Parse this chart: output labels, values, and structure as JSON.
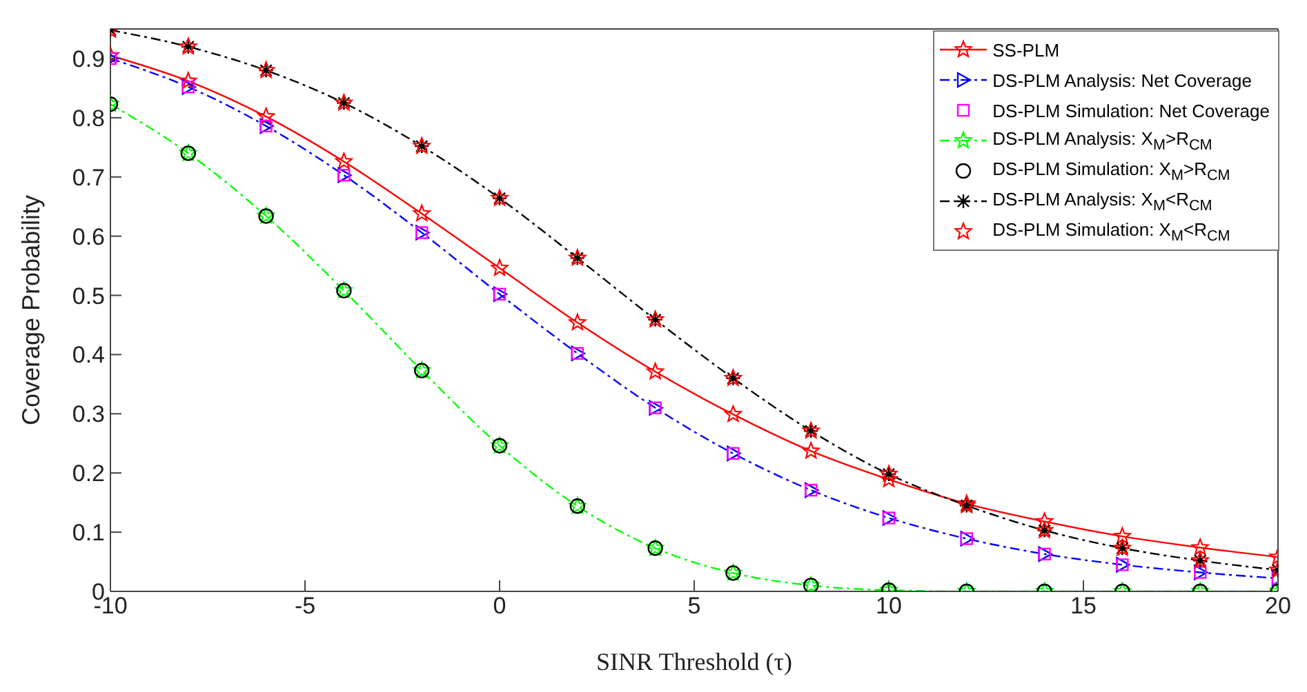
{
  "chart_data": {
    "type": "line",
    "xlabel": "SINR Threshold (τ)",
    "ylabel": "Coverage Probability",
    "x": [
      -10,
      -8,
      -6,
      -4,
      -2,
      0,
      2,
      4,
      6,
      8,
      10,
      12,
      14,
      16,
      18,
      20
    ],
    "xlim": [
      -10,
      20
    ],
    "xticks": [
      -10,
      -5,
      0,
      5,
      10,
      15,
      20
    ],
    "ylim": [
      0,
      0.95
    ],
    "yticks": [
      0,
      0.1,
      0.2,
      0.3,
      0.4,
      0.5,
      0.6,
      0.7,
      0.8,
      0.9
    ],
    "grid": false,
    "legend": "top right",
    "series": [
      {
        "name": "SS-PLM",
        "color": "#ff0000",
        "marker": "star",
        "line_style": "solid",
        "values": [
          0.905,
          0.862,
          0.802,
          0.726,
          0.638,
          0.546,
          0.454,
          0.371,
          0.299,
          0.237,
          0.189,
          0.148,
          0.118,
          0.093,
          0.074,
          0.058
        ]
      },
      {
        "name": "DS-PLM Analysis: Net Coverage",
        "color": "#0000ff",
        "marker": "triangle",
        "line_style": "dashed",
        "values": [
          0.9,
          0.852,
          0.786,
          0.703,
          0.606,
          0.502,
          0.402,
          0.31,
          0.233,
          0.171,
          0.124,
          0.089,
          0.063,
          0.045,
          0.032,
          0.022
        ]
      },
      {
        "name": "DS-PLM Simulation: Net Coverage",
        "type": "scatter",
        "color": "#ff00ff",
        "marker": "square",
        "values": [
          0.9,
          0.852,
          0.786,
          0.703,
          0.606,
          0.502,
          0.402,
          0.31,
          0.233,
          0.171,
          0.124,
          0.089,
          0.063,
          0.045,
          0.032,
          0.022
        ]
      },
      {
        "name": "DS-PLM Analysis: X$_{M}$>R$_{CM}$",
        "color": "#00ff00",
        "marker": "star",
        "line_style": "dashed",
        "values": [
          0.823,
          0.74,
          0.634,
          0.508,
          0.373,
          0.246,
          0.144,
          0.073,
          0.031,
          0.01,
          0.002,
          0,
          0,
          0,
          0,
          0
        ]
      },
      {
        "name": "DS-PLM Simulation: X$_{M}$>R$_{CM}$",
        "type": "scatter",
        "color": "#000000",
        "marker": "circle",
        "values": [
          0.823,
          0.74,
          0.634,
          0.508,
          0.373,
          0.246,
          0.144,
          0.073,
          0.031,
          0.01,
          0.002,
          0,
          0,
          0,
          0,
          0
        ]
      },
      {
        "name": "DS-PLM Analysis: X$_{M}$<R$_{CM}$",
        "color": "#000000",
        "marker": "cross",
        "line_style": "dashed",
        "values": [
          0.948,
          0.92,
          0.88,
          0.825,
          0.752,
          0.664,
          0.563,
          0.459,
          0.36,
          0.271,
          0.198,
          0.145,
          0.103,
          0.073,
          0.052,
          0.036
        ]
      },
      {
        "name": "DS-PLM Simulation: X$_{M}$<R$_{CM}$",
        "type": "scatter",
        "color": "#ff0000",
        "marker": "star",
        "values": [
          0.948,
          0.92,
          0.88,
          0.825,
          0.752,
          0.664,
          0.563,
          0.459,
          0.36,
          0.271,
          0.198,
          0.145,
          0.103,
          0.073,
          0.052,
          0.036
        ]
      }
    ]
  }
}
